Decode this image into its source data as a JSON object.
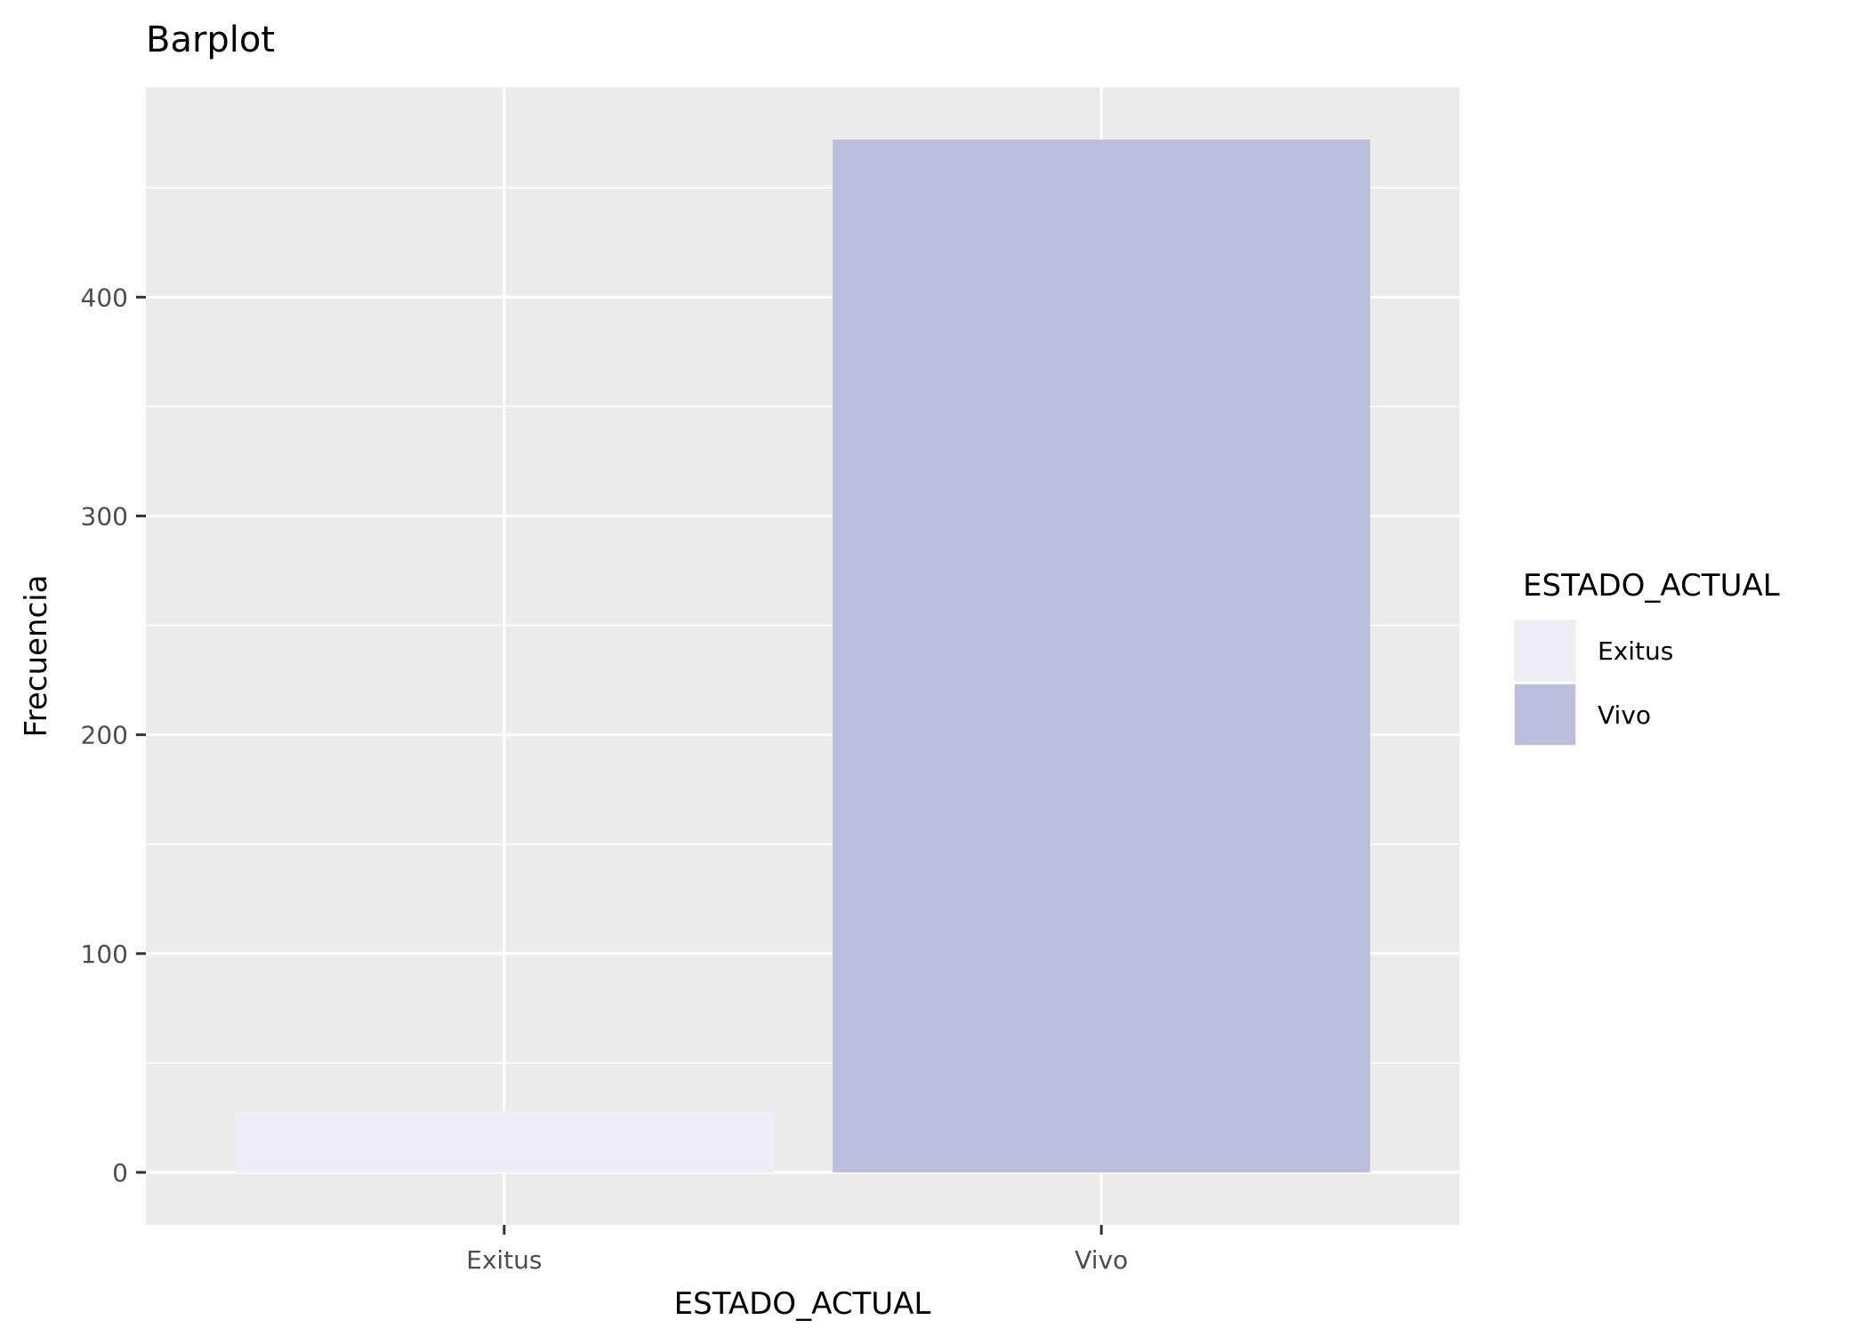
{
  "chart_data": {
    "type": "bar",
    "title": "Barplot",
    "xlabel": "ESTADO_ACTUAL",
    "ylabel": "Frecuencia",
    "categories": [
      "Exitus",
      "Vivo"
    ],
    "values": [
      28,
      472
    ],
    "colors": [
      "#eeedf5",
      "#bcbddc"
    ],
    "y_ticks": [
      0,
      100,
      200,
      300,
      400
    ],
    "ylim": [
      -24,
      496
    ],
    "grid": true,
    "panel_background": "#ebebeb",
    "legend": {
      "title": "ESTADO_ACTUAL",
      "position": "right",
      "entries": [
        "Exitus",
        "Vivo"
      ]
    }
  }
}
